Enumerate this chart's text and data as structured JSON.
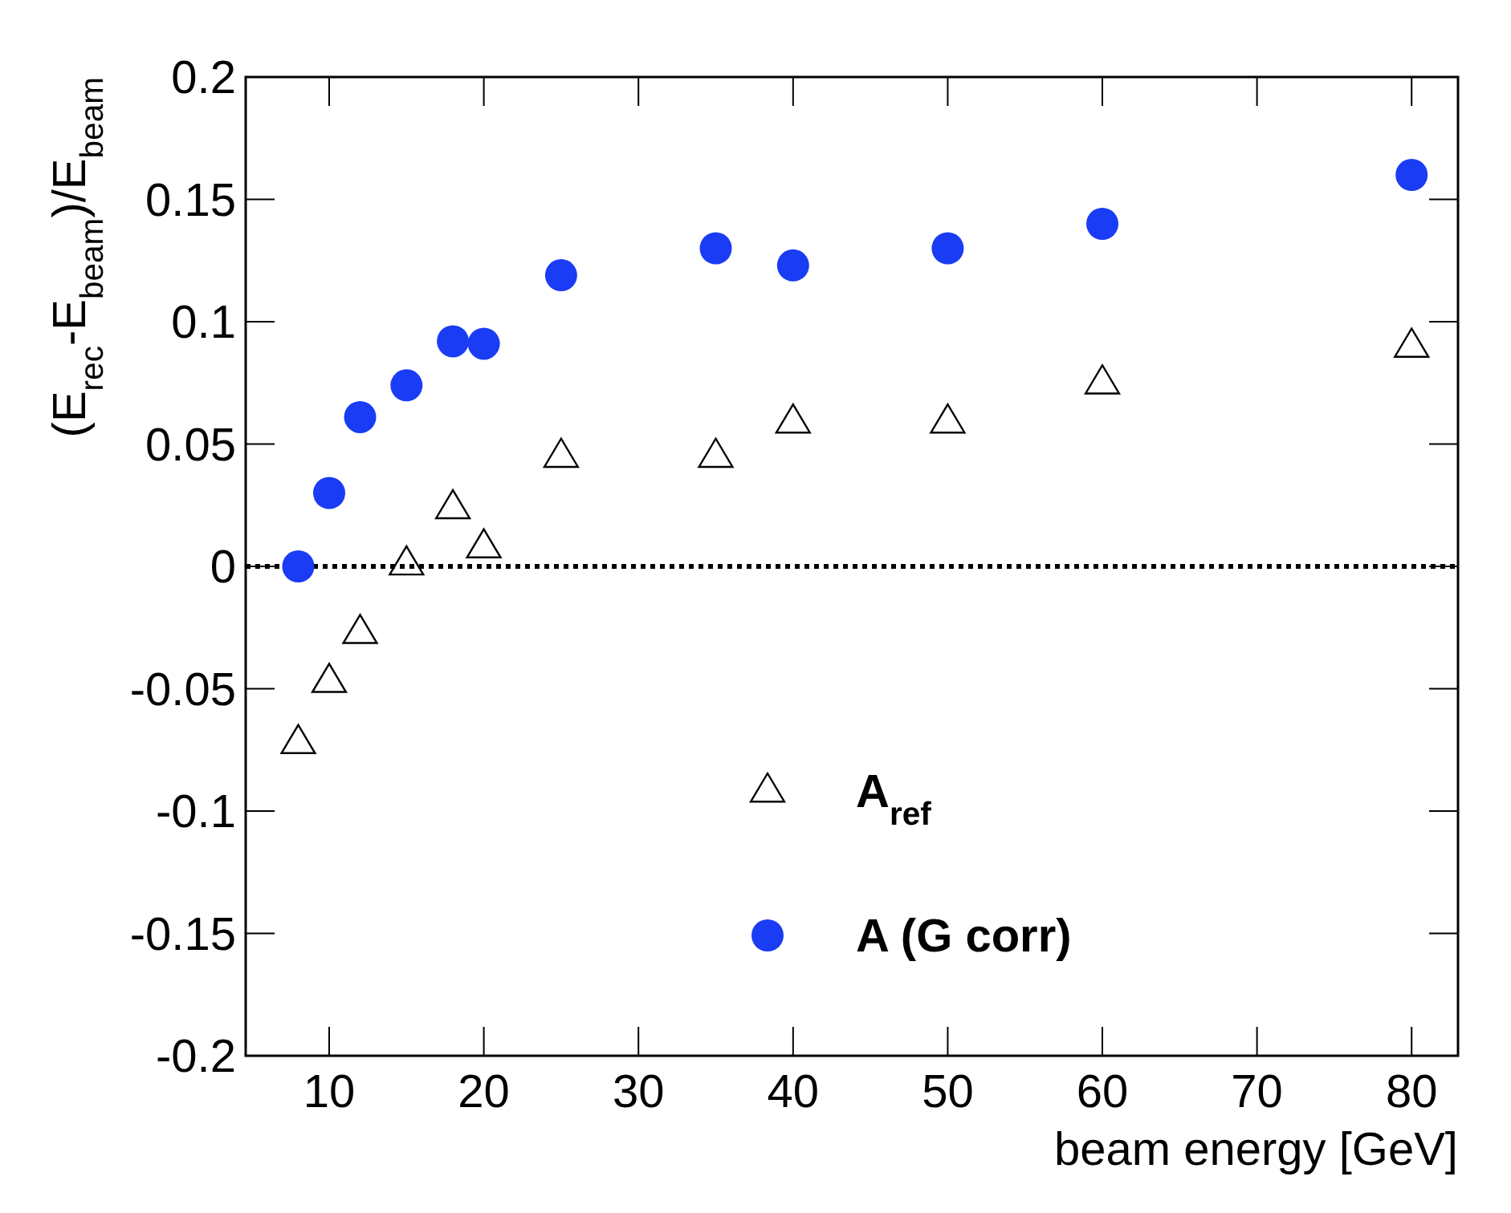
{
  "chart_data": {
    "type": "scatter",
    "xlabel": "beam energy [GeV]",
    "ylabel": "(E$_{rec}$-E$_{beam}$)/E$_{beam}$",
    "xlim": [
      4.6,
      83
    ],
    "xticks": [
      10,
      20,
      30,
      40,
      50,
      60,
      70,
      80
    ],
    "ylim": [
      -0.2,
      0.2
    ],
    "yticks": [
      {
        "value": -0.2,
        "label": "-0.2"
      },
      {
        "value": -0.15,
        "label": "-0.15"
      },
      {
        "value": -0.1,
        "label": "-0.1"
      },
      {
        "value": -0.05,
        "label": "-0.05"
      },
      {
        "value": 0,
        "label": "0"
      },
      {
        "value": 0.05,
        "label": "0.05"
      },
      {
        "value": 0.1,
        "label": "0.1"
      },
      {
        "value": 0.15,
        "label": "0.15"
      },
      {
        "value": 0.2,
        "label": "0.2"
      }
    ],
    "x": [
      8,
      10,
      12,
      15,
      18,
      20,
      25,
      35,
      40,
      50,
      60,
      80
    ],
    "series": [
      {
        "name": "A$_{ref}$",
        "color": "#000000",
        "marker": "triangle",
        "values": [
          -0.072,
          -0.047,
          -0.027,
          0.001,
          0.024,
          0.008,
          0.045,
          0.045,
          0.059,
          0.059,
          0.075,
          0.09
        ]
      },
      {
        "name": "A (G corr)",
        "color": "#1a3cf5",
        "marker": "circle",
        "values": [
          0.0,
          0.03,
          0.061,
          0.074,
          0.092,
          0.091,
          0.119,
          0.13,
          0.123,
          0.13,
          0.14,
          0.16
        ]
      }
    ],
    "ref_lines": [
      {
        "axis": "y",
        "value": 0,
        "color": "#000000",
        "line_style": "dotted"
      }
    ],
    "legend": "bottom",
    "grid": false
  }
}
